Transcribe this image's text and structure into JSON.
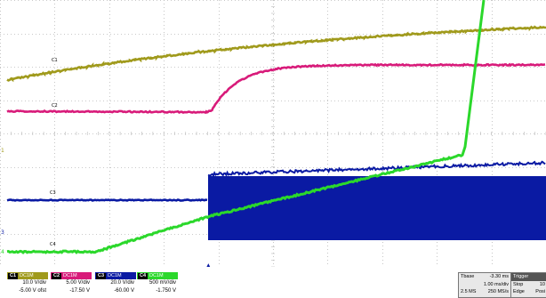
{
  "screen": {
    "width": 614,
    "height": 300,
    "divisions_x": 10,
    "divisions_y": 8
  },
  "colors": {
    "ch1": "#a09a1c",
    "ch2": "#d81b7a",
    "ch3": "#0a1aa3",
    "ch4": "#2bd82b",
    "grid": "#b9b9b9",
    "background": "#ffffff"
  },
  "traces": {
    "ch1_label": "C1",
    "ch2_label": "C2",
    "ch3_label": "C3",
    "ch4_label": "C4"
  },
  "ground_markers": {
    "ch1": "1",
    "ch3": "3",
    "ch4": "4"
  },
  "trigger_marker": "▲",
  "channels": [
    {
      "tag": "C1",
      "mode": "DC1M",
      "vdiv": "10.0 V/div",
      "offset": "-5.00 V ofst",
      "color": "#a09a1c"
    },
    {
      "tag": "C2",
      "mode": "DC1M",
      "vdiv": "5.00 V/div",
      "offset": "-17.50 V",
      "color": "#d81b7a"
    },
    {
      "tag": "C3",
      "mode": "DC1M",
      "vdiv": "20.0 V/div",
      "offset": "-60.00 V",
      "color": "#0a1aa3"
    },
    {
      "tag": "C4",
      "mode": "DC1M",
      "vdiv": "500 mV/div",
      "offset": "-1.750 V",
      "color": "#2bd82b"
    }
  ],
  "timebase": {
    "label": "Tbase",
    "delay": "-3.30 ms",
    "per_div": "1.00 ms/div",
    "samples": "2.5 MS",
    "rate": "250 MS/s"
  },
  "trigger": {
    "label": "Trigger",
    "mode": "Stop",
    "type": "Edge",
    "level": "10",
    "slope": "Posi"
  }
}
